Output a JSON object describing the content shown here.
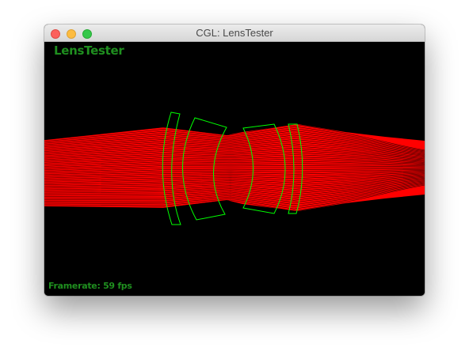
{
  "window": {
    "title": "CGL: LensTester"
  },
  "viewport": {
    "app_label": "LensTester",
    "framerate_text": "Framerate: 59 fps",
    "label_color": "#1f8f1f",
    "ray_color": "#ff0000",
    "lens_color": "#00ff00",
    "background_color": "#000000"
  },
  "icons": {
    "close": "close-icon",
    "minimize": "minimize-icon",
    "zoom": "zoom-icon"
  }
}
